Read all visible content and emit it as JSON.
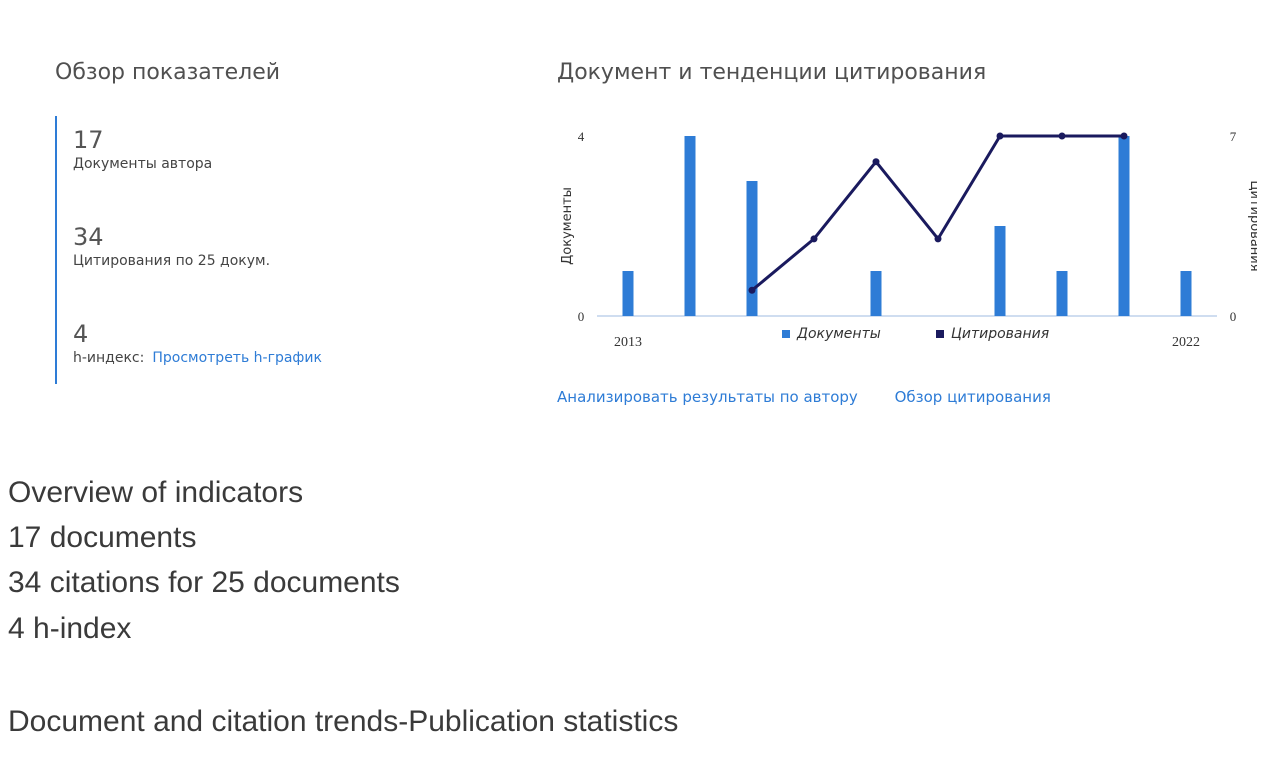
{
  "metrics": {
    "title": "Обзор показателей",
    "documents": {
      "value": "17",
      "label": "Документы автора"
    },
    "citations": {
      "value": "34",
      "label": "Цитирования по 25 докум."
    },
    "h_index": {
      "value": "4",
      "label": "h-индекс:",
      "link": "Просмотреть h-график"
    }
  },
  "chart_panel": {
    "title": "Документ и тенденции цитирования",
    "links": {
      "analyze": "Анализировать результаты по автору",
      "citation_overview": "Обзор цитирования"
    }
  },
  "captions": [
    "Overview of indicators",
    "17 documents",
    "34 citations for 25 documents",
    "4 h-index",
    "Document and citation trends-Publication statistics"
  ],
  "colors": {
    "bar": "#2e7cd6",
    "line": "#1a1a5e",
    "link": "#2e7cd6"
  },
  "chart_data": {
    "type": "bar",
    "x": [
      2013,
      2014,
      2015,
      2016,
      2017,
      2018,
      2019,
      2020,
      2021,
      2022
    ],
    "x_tick_labels": [
      "2013",
      "2022"
    ],
    "series": [
      {
        "name": "Документы",
        "type": "bar",
        "axis": "left",
        "values": [
          1,
          4,
          3,
          0,
          1,
          0,
          2,
          1,
          4,
          1
        ]
      },
      {
        "name": "Цитирования",
        "type": "line",
        "axis": "right",
        "values": [
          null,
          null,
          1,
          3,
          6,
          3,
          7,
          7,
          7,
          null
        ]
      }
    ],
    "ylabel_left": "Документы",
    "ylabel_right": "Цитирования",
    "ylim_left": [
      0,
      4
    ],
    "ylim_right": [
      0,
      7
    ],
    "ytick_left": [
      "0",
      "4"
    ],
    "ytick_right": [
      "0",
      "7"
    ],
    "legend_position": "bottom-center",
    "grid": false
  }
}
